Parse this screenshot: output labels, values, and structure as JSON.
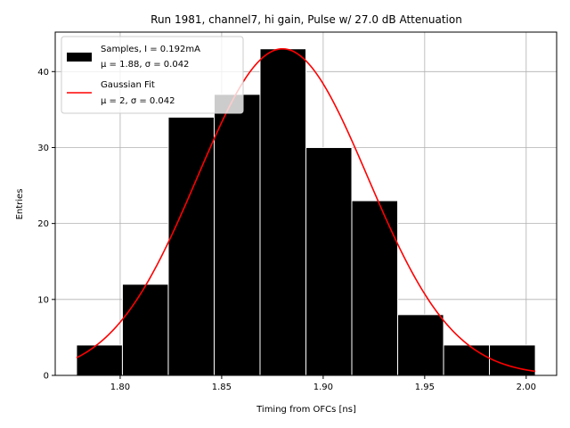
{
  "chart_data": {
    "type": "bar",
    "title": "Run 1981, channel7, hi gain, Pulse w/ 27.0 dB Attenuation",
    "xlabel": "Timing from OFCs [ns]",
    "ylabel": "Entries",
    "xlim": [
      1.768,
      2.015
    ],
    "ylim": [
      0,
      45.2
    ],
    "grid": true,
    "xticks": [
      1.8,
      1.85,
      1.9,
      1.95,
      2.0
    ],
    "xtick_labels": [
      "1.80",
      "1.85",
      "1.90",
      "1.95",
      "2.00"
    ],
    "yticks": [
      0,
      10,
      20,
      30,
      40
    ],
    "ytick_labels": [
      "0",
      "10",
      "20",
      "30",
      "40"
    ],
    "bins": [
      {
        "x0": 1.7785,
        "x1": 1.8011,
        "count": 4
      },
      {
        "x0": 1.8011,
        "x1": 1.8237,
        "count": 12
      },
      {
        "x0": 1.8237,
        "x1": 1.8463,
        "count": 34
      },
      {
        "x0": 1.8463,
        "x1": 1.8689,
        "count": 37
      },
      {
        "x0": 1.8689,
        "x1": 1.8915,
        "count": 43
      },
      {
        "x0": 1.8915,
        "x1": 1.9141,
        "count": 30
      },
      {
        "x0": 1.9141,
        "x1": 1.9367,
        "count": 23
      },
      {
        "x0": 1.9367,
        "x1": 1.9593,
        "count": 8
      },
      {
        "x0": 1.9593,
        "x1": 1.9819,
        "count": 4
      },
      {
        "x0": 1.9819,
        "x1": 2.0045,
        "count": 4
      }
    ],
    "fit": {
      "name": "Gaussian Fit",
      "peak": 43,
      "mean": 1.88,
      "sigma": 0.042,
      "x_range": [
        1.7785,
        2.0045
      ],
      "color": "#ff0000"
    },
    "legend": {
      "placement": "upper-left",
      "entries": [
        {
          "line1": "Samples, I = 0.192mA",
          "line2": "μ = 1.88, σ = 0.042",
          "color": "#000000",
          "kind": "patch"
        },
        {
          "line1": "Gaussian Fit",
          "line2": "μ = 2, σ = 0.042",
          "color": "#ff0000",
          "kind": "line"
        }
      ]
    },
    "colors": {
      "bar_fill": "#000000",
      "bar_edge": "#ffffff",
      "grid": "#b0b0b0"
    }
  }
}
